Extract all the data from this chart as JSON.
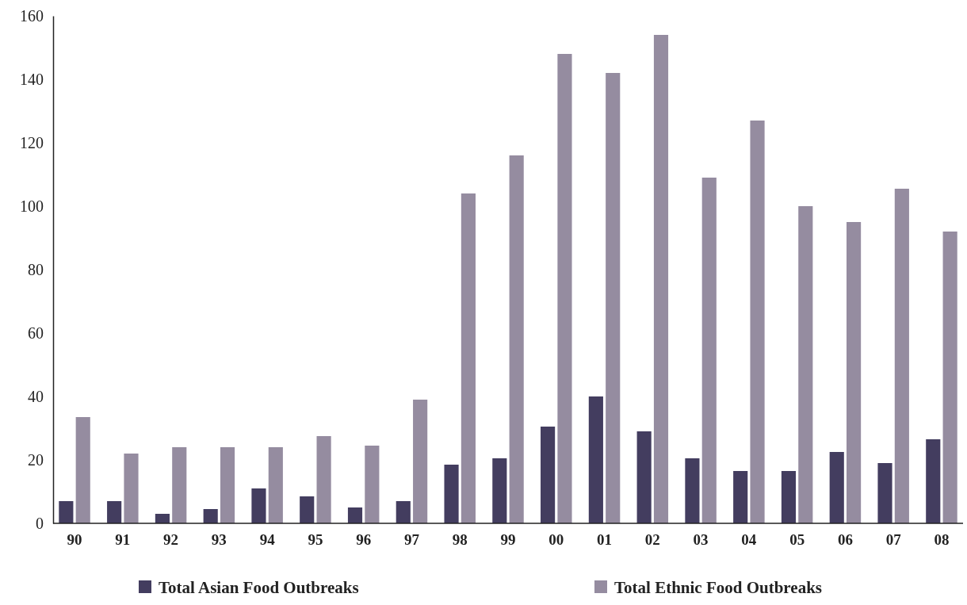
{
  "chart_data": {
    "type": "bar",
    "categories": [
      "90",
      "91",
      "92",
      "93",
      "94",
      "95",
      "96",
      "97",
      "98",
      "99",
      "00",
      "01",
      "02",
      "03",
      "04",
      "05",
      "06",
      "07",
      "08"
    ],
    "series": [
      {
        "name": "Total Asian Food Outbreaks",
        "color": "#433d5f",
        "values": [
          7,
          7,
          3,
          4.5,
          11,
          8.5,
          5,
          7,
          18.5,
          20.5,
          30.5,
          40,
          29,
          20.5,
          16.5,
          16.5,
          22.5,
          19,
          26.5
        ]
      },
      {
        "name": "Total Ethnic Food Outbreaks",
        "color": "#958ca0",
        "values": [
          33.5,
          22,
          24,
          24,
          24,
          27.5,
          24.5,
          39,
          104,
          116,
          148,
          142,
          154,
          109,
          127,
          100,
          95,
          105.5,
          92
        ]
      }
    ],
    "ylim": [
      0,
      160
    ],
    "yticks": [
      0,
      20,
      40,
      60,
      80,
      100,
      120,
      140,
      160
    ],
    "grid": false,
    "legend": "bottom"
  }
}
